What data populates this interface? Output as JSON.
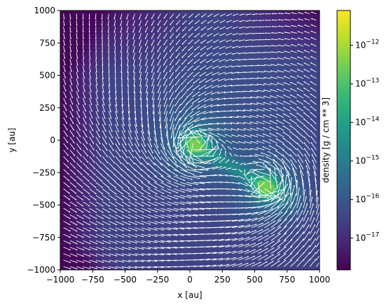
{
  "chart_data": {
    "type": "heatmap",
    "title": "",
    "xlabel": "x [au]",
    "ylabel": "y [au]",
    "xlim": [
      -1000,
      1000
    ],
    "ylim": [
      -1000,
      1000
    ],
    "x_ticks": [
      -1000,
      -750,
      -500,
      -250,
      0,
      250,
      500,
      750,
      1000
    ],
    "y_ticks": [
      -1000,
      -750,
      -500,
      -250,
      0,
      250,
      500,
      750,
      1000
    ],
    "x_tick_labels": [
      "−1000",
      "−750",
      "−500",
      "−250",
      "0",
      "250",
      "500",
      "750",
      "1000"
    ],
    "y_tick_labels": [
      "−1000",
      "−750",
      "−500",
      "−250",
      "0",
      "250",
      "500",
      "750",
      "1000"
    ],
    "colorbar": {
      "label": "density [g / cm ** 3]",
      "scale": "log",
      "range": [
        1.5e-18,
        8e-12
      ],
      "ticks": [
        1e-17,
        1e-16,
        1e-15,
        1e-14,
        1e-13,
        1e-12
      ],
      "tick_bases": [
        "10",
        "10",
        "10",
        "10",
        "10",
        "10"
      ],
      "tick_exponents": [
        "−17",
        "−16",
        "−15",
        "−14",
        "−13",
        "−12"
      ],
      "colormap": "viridis",
      "colors": [
        "#440154",
        "#482878",
        "#3e4a89",
        "#31688e",
        "#26828e",
        "#1f9e89",
        "#35b779",
        "#6ece58",
        "#b5de2b",
        "#fde725"
      ]
    },
    "density_features": {
      "background": 3e-17,
      "low_density_edges": 2e-18,
      "sinks": [
        {
          "x": 30,
          "y": -30,
          "peak": 3e-13
        },
        {
          "x": 600,
          "y": -370,
          "peak": 2e-13
        }
      ],
      "bridge": {
        "from": [
          30,
          -30
        ],
        "to": [
          600,
          -370
        ],
        "value": 3e-15
      }
    },
    "velocity_field": {
      "color": "#ffffff",
      "grid_spacing": 50,
      "vortex_centers": [
        [
          30,
          -30
        ],
        [
          600,
          -370
        ]
      ],
      "description": "quiver arrows swirling around two density peaks"
    }
  }
}
